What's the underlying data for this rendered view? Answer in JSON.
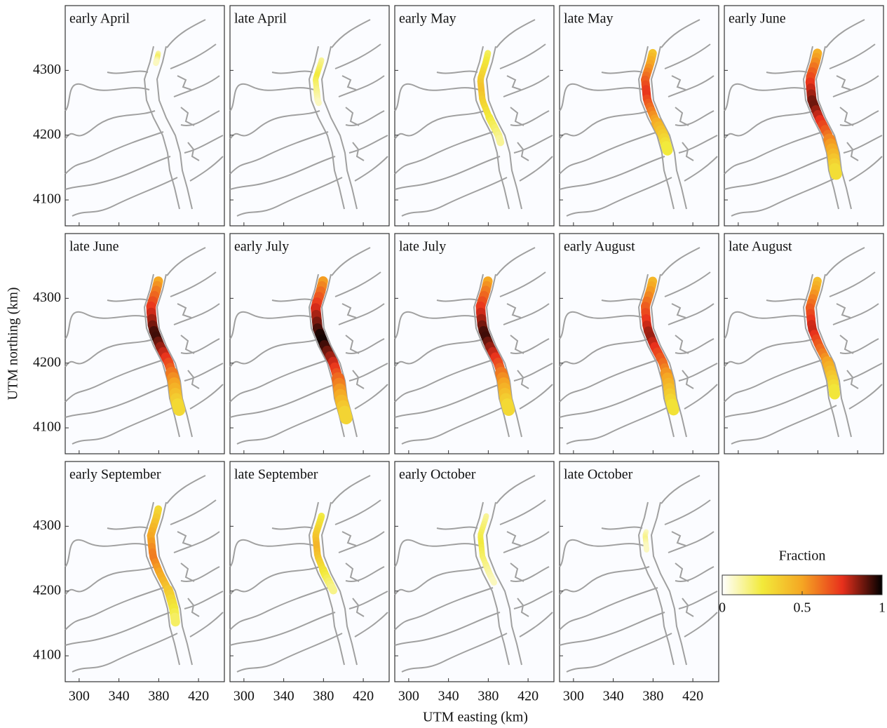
{
  "panels": [
    {
      "title": "early April"
    },
    {
      "title": "late April"
    },
    {
      "title": "early May"
    },
    {
      "title": "late May"
    },
    {
      "title": "early June"
    },
    {
      "title": "late June"
    },
    {
      "title": "early July"
    },
    {
      "title": "late July"
    },
    {
      "title": "early August"
    },
    {
      "title": "late August"
    },
    {
      "title": "early September"
    },
    {
      "title": "late September"
    },
    {
      "title": "early October"
    },
    {
      "title": "late October"
    }
  ],
  "x_axis": {
    "label": "UTM easting (km)",
    "lim": [
      286,
      446
    ],
    "ticks": [
      300,
      340,
      380,
      420
    ]
  },
  "y_axis": {
    "label": "UTM northing (km)",
    "lim": [
      4060,
      4400
    ],
    "ticks": [
      4100,
      4200,
      4300
    ]
  },
  "colorbar": {
    "title": "Fraction",
    "lim": [
      0,
      1
    ],
    "ticks": [
      0,
      0.5,
      1
    ],
    "colors": [
      "#ffffff",
      "#f2ea3a",
      "#f5a623",
      "#e8301c",
      "#000000"
    ]
  }
}
